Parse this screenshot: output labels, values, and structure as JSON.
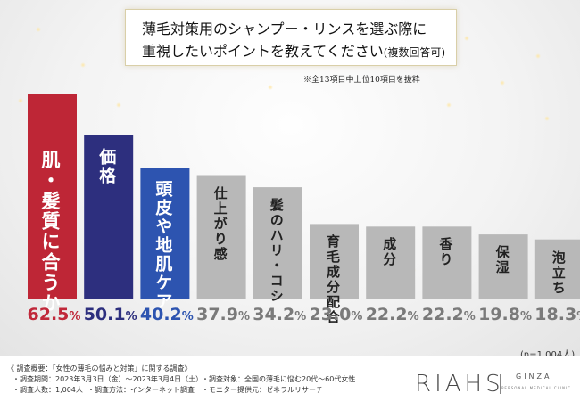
{
  "title": {
    "line1": "薄毛対策用のシャンプー・リンスを選ぶ際に",
    "line2": "重視したいポイントを教えてください",
    "line2_note": "(複数回答可)"
  },
  "note_top": "※全13項目中上位10項目を抜粋",
  "sample_note": "(n=1,004人)",
  "colors": {
    "red": "#be2636",
    "navy": "#2d2f7e",
    "blue": "#2d54b0",
    "gray": "#b8b8b8",
    "red_text": "#c0283a",
    "navy_text": "#2d2f7e",
    "blue_text": "#2d54b0",
    "gray_text": "#7a7a7a"
  },
  "chart_data": {
    "type": "bar",
    "title": "薄毛対策用のシャンプー・リンスを選ぶ際に重視したいポイントを教えてください(複数回答可)",
    "unit": "%",
    "ylim": [
      0,
      70
    ],
    "categories": [
      "肌・髪質に合うか",
      "価格",
      "頭皮や地肌ケア",
      "仕上がり感",
      "髪のハリ・コシ",
      "育毛成分配合",
      "成分",
      "香り",
      "保湿",
      "泡立ち"
    ],
    "values": [
      62.5,
      50.1,
      40.2,
      37.9,
      34.2,
      23.0,
      22.2,
      22.2,
      19.8,
      18.3
    ],
    "bar_colors": [
      "red",
      "navy",
      "blue",
      "gray",
      "gray",
      "gray",
      "gray",
      "gray",
      "gray",
      "gray"
    ]
  },
  "footer": {
    "heading": "《 調査概要：「女性の薄毛の悩みと対策」に関する調査》",
    "period": "・調査期間：2023年3月3日（金）〜2023年3月4日（土）",
    "target": "・調査対象：全国の薄毛に悩む20代〜60代女性",
    "count": "・調査人数：1,004人",
    "method": "・調査方法：インターネット調査",
    "provider": "・モニター提供元：ゼネラルリサーチ"
  },
  "logo": {
    "main": "RIAHS",
    "sub": "GINZA",
    "clinic": "PERSONAL MEDICAL CLINIC"
  }
}
